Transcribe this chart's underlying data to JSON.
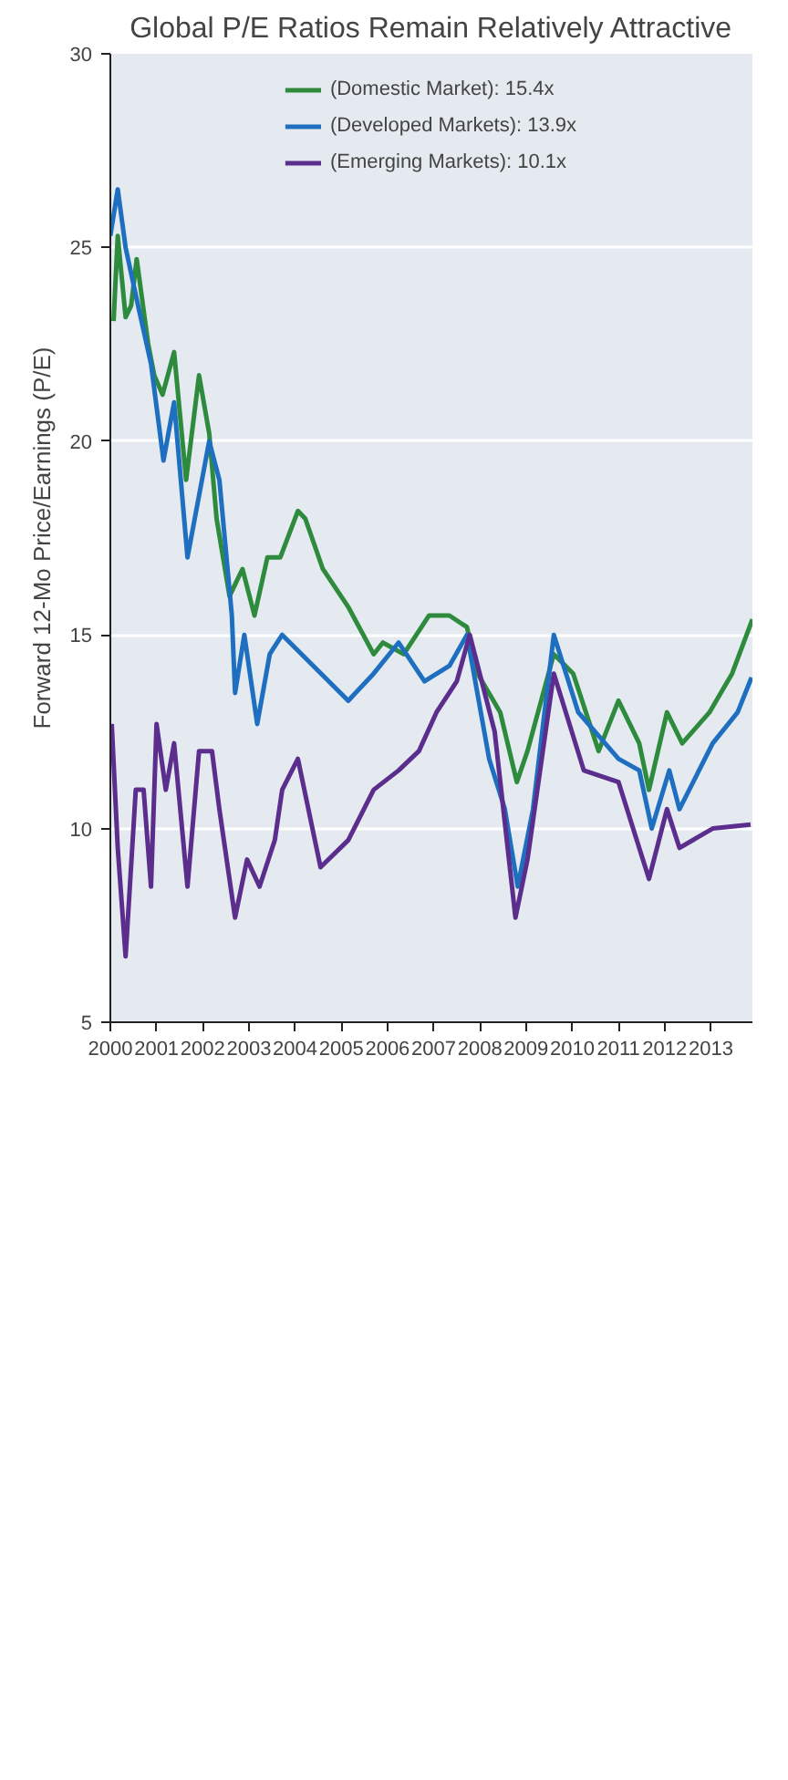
{
  "chart_data": {
    "type": "line",
    "title": "Global P/E Ratios Remain Relatively Attractive",
    "ylabel": "Forward 12-Mo Price/Earnings (P/E)",
    "xlim": [
      2000,
      2013.9
    ],
    "xticks": [
      2000,
      2001,
      2002,
      2003,
      2004,
      2005,
      2006,
      2007,
      2008,
      2009,
      2010,
      2011,
      2012,
      2013
    ],
    "ylim": [
      5,
      30
    ],
    "yticks": [
      5,
      10,
      15,
      20,
      25,
      30
    ],
    "grid": "y",
    "legend": "top",
    "series": [
      {
        "name": "(Domestic Market): 15.4x",
        "color": "#2e8b3e",
        "x": [
          2000.07,
          2000.16,
          2000.33,
          2000.45,
          2000.57,
          2000.82,
          2000.95,
          2001.13,
          2001.38,
          2001.64,
          2001.92,
          2002.14,
          2002.3,
          2002.58,
          2002.86,
          2003.12,
          2003.4,
          2003.68,
          2004.06,
          2004.22,
          2004.6,
          2005.16,
          2005.7,
          2005.9,
          2006.35,
          2006.9,
          2007.34,
          2007.72,
          2007.95,
          2008.44,
          2008.8,
          2009.03,
          2009.6,
          2010.02,
          2010.57,
          2011.0,
          2011.45,
          2011.66,
          2012.05,
          2012.38,
          2012.97,
          2013.46,
          2013.9
        ],
        "values": [
          23.1,
          25.3,
          23.2,
          23.5,
          24.7,
          22.5,
          21.7,
          21.2,
          22.3,
          19.0,
          21.7,
          20.2,
          18.0,
          16.0,
          16.7,
          15.5,
          17.0,
          17.0,
          18.2,
          18.0,
          16.7,
          15.7,
          14.5,
          14.8,
          14.5,
          15.5,
          15.5,
          15.2,
          14.0,
          13.0,
          11.2,
          12.0,
          14.5,
          14.0,
          12.0,
          13.3,
          12.2,
          11.0,
          13.0,
          12.2,
          13.0,
          14.0,
          15.4
        ]
      },
      {
        "name": "(Developed Markets): 13.9x",
        "color": "#1f6fc0",
        "x": [
          2000.0,
          2000.16,
          2000.33,
          2000.6,
          2000.88,
          2001.15,
          2001.38,
          2001.67,
          2002.14,
          2002.36,
          2002.63,
          2002.7,
          2002.9,
          2003.18,
          2003.45,
          2003.72,
          2005.15,
          2005.7,
          2006.24,
          2006.8,
          2007.34,
          2007.72,
          2008.2,
          2008.54,
          2008.82,
          2009.15,
          2009.6,
          2010.13,
          2011.0,
          2011.45,
          2011.72,
          2012.1,
          2012.32,
          2013.04,
          2013.58,
          2013.88
        ],
        "values": [
          25.3,
          26.5,
          25.0,
          23.5,
          22.0,
          19.5,
          21.0,
          17.0,
          20.0,
          19.0,
          15.5,
          13.5,
          15.0,
          12.7,
          14.5,
          15.0,
          13.3,
          14.0,
          14.8,
          13.8,
          14.2,
          15.0,
          11.8,
          10.5,
          8.5,
          10.5,
          15.0,
          13.0,
          11.8,
          11.5,
          10.0,
          11.5,
          10.5,
          12.2,
          13.0,
          13.9
        ]
      },
      {
        "name": "(Emerging Markets): 10.1x",
        "color": "#5b2d8c",
        "x": [
          2000.03,
          2000.16,
          2000.33,
          2000.55,
          2000.72,
          2000.88,
          2001.0,
          2001.2,
          2001.38,
          2001.67,
          2001.92,
          2002.2,
          2002.36,
          2002.7,
          2002.96,
          2003.23,
          2003.56,
          2003.72,
          2004.06,
          2004.55,
          2005.15,
          2005.7,
          2006.24,
          2006.68,
          2007.06,
          2007.5,
          2007.78,
          2008.32,
          2008.77,
          2009.03,
          2009.6,
          2010.25,
          2011.0,
          2011.66,
          2012.05,
          2012.32,
          2013.04,
          2013.86
        ],
        "values": [
          12.7,
          9.5,
          6.7,
          11.0,
          11.0,
          8.5,
          12.7,
          11.0,
          12.2,
          8.5,
          12.0,
          12.0,
          10.5,
          7.7,
          9.2,
          8.5,
          9.7,
          11.0,
          11.8,
          9.0,
          9.7,
          11.0,
          11.5,
          12.0,
          13.0,
          13.8,
          15.0,
          12.5,
          7.7,
          9.2,
          14.0,
          11.5,
          11.2,
          8.7,
          10.5,
          9.5,
          10.0,
          10.1
        ]
      }
    ]
  }
}
